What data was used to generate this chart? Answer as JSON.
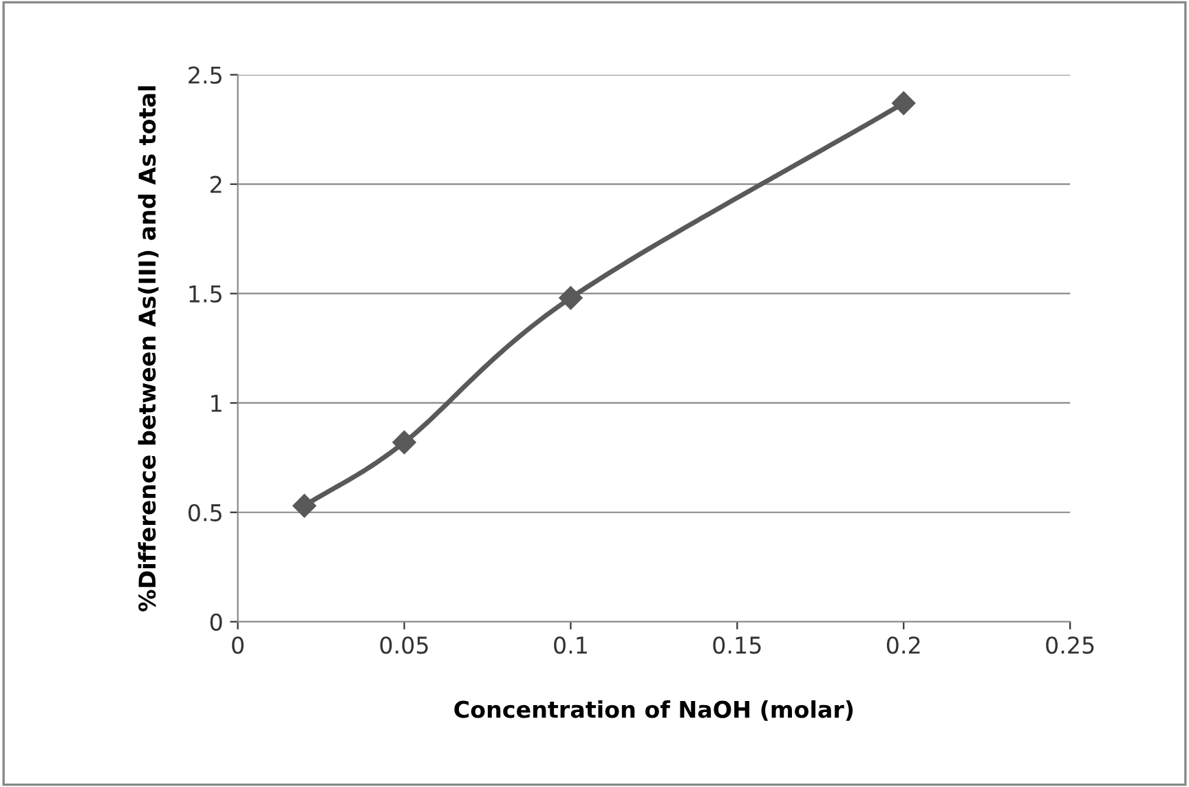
{
  "chart_data": {
    "type": "line",
    "xlabel": "Concentration of NaOH (molar)",
    "ylabel": "%Difference between As(III) and As total",
    "x": [
      0.02,
      0.05,
      0.1,
      0.2
    ],
    "series": [
      {
        "color": "#595959",
        "values": [
          0.53,
          0.82,
          1.48,
          2.37
        ]
      }
    ],
    "xlim": [
      0,
      0.25
    ],
    "xticks": [
      0,
      0.05,
      0.1,
      0.15,
      0.2,
      0.25
    ],
    "ylim": [
      0,
      2.5
    ],
    "yticks": [
      0,
      0.5,
      1,
      1.5,
      2,
      2.5
    ],
    "grid": "y",
    "marker": "diamond",
    "line_style": "solid"
  }
}
